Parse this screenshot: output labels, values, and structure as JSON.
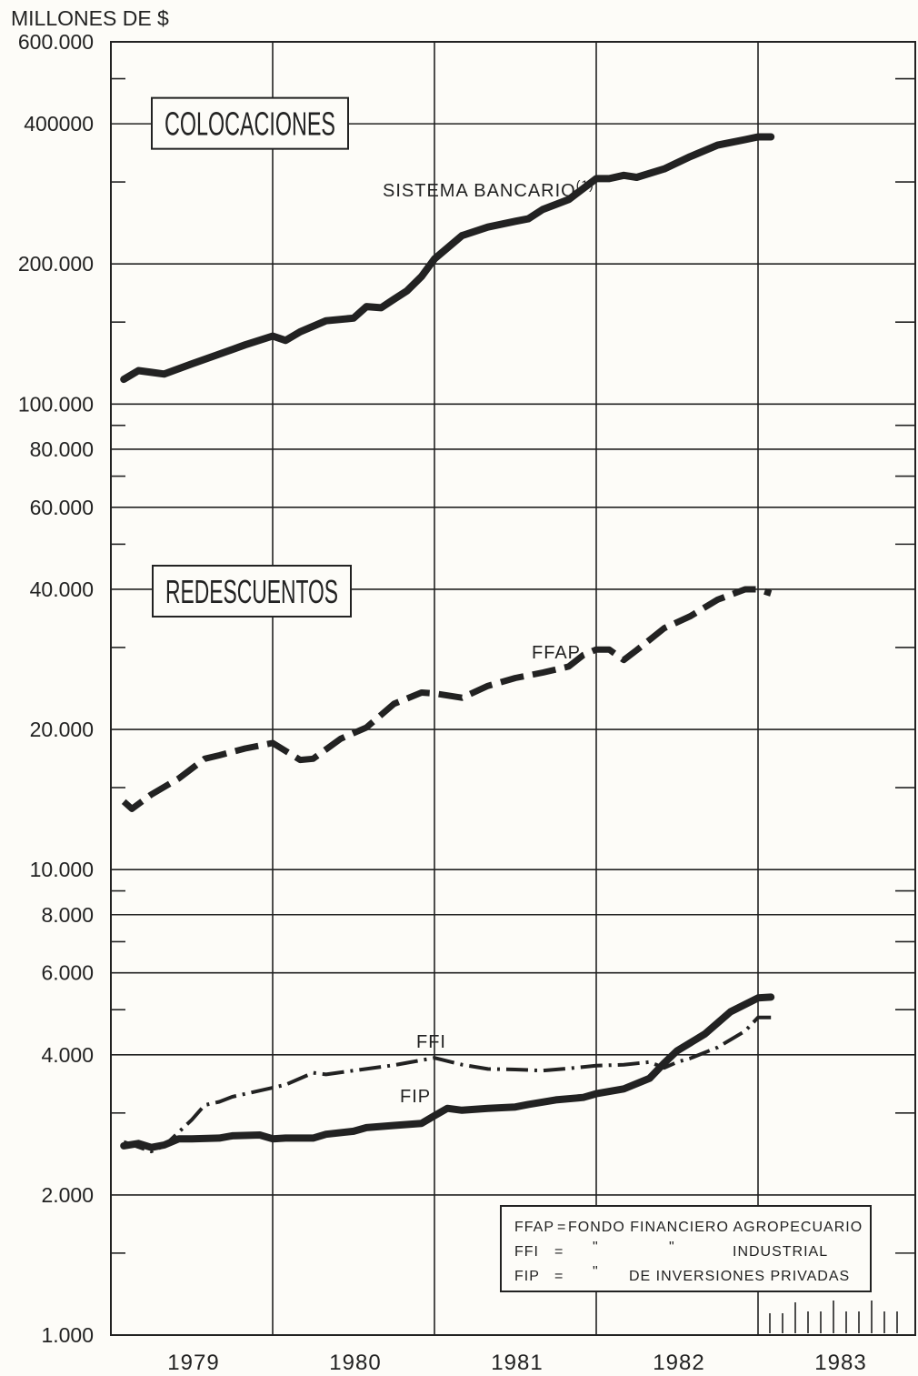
{
  "chart_data": {
    "type": "line",
    "yscale": "log",
    "ylim": [
      1000,
      600000
    ],
    "xlim": [
      1978.5,
      1983.5
    ],
    "unit_label": "MILLONES DE $",
    "y_ticks": [
      {
        "value": 1000,
        "label": "1.000"
      },
      {
        "value": 2000,
        "label": "2.000"
      },
      {
        "value": 4000,
        "label": "4.000"
      },
      {
        "value": 6000,
        "label": "6.000"
      },
      {
        "value": 8000,
        "label": "8.000"
      },
      {
        "value": 10000,
        "label": "10.000"
      },
      {
        "value": 20000,
        "label": "20.000"
      },
      {
        "value": 40000,
        "label": "40.000"
      },
      {
        "value": 60000,
        "label": "60.000"
      },
      {
        "value": 80000,
        "label": "80.000"
      },
      {
        "value": 100000,
        "label": "100.000"
      },
      {
        "value": 200000,
        "label": "200.000"
      },
      {
        "value": 400000,
        "label": "400000"
      },
      {
        "value": 600000,
        "label": "600.000"
      }
    ],
    "x_ticks": [
      {
        "value": 1979,
        "label": "1979"
      },
      {
        "value": 1980,
        "label": "1980"
      },
      {
        "value": 1981,
        "label": "1981"
      },
      {
        "value": 1982,
        "label": "1982"
      },
      {
        "value": 1983,
        "label": "1983"
      }
    ],
    "panels": [
      {
        "title": "COLOCACIONES",
        "value": 410000
      },
      {
        "title": "REDESCUENTOS",
        "value": 40000
      }
    ],
    "series": [
      {
        "name": "SISTEMA BANCARIO(1)",
        "label": "SISTEMA BANCARIO",
        "label_sup": "(1)",
        "style": "solid-heavy",
        "x": [
          1978.58,
          1978.67,
          1978.75,
          1978.83,
          1979.0,
          1979.17,
          1979.33,
          1979.5,
          1979.58,
          1979.67,
          1979.83,
          1980.0,
          1980.08,
          1980.17,
          1980.25,
          1980.33,
          1980.42,
          1980.5,
          1980.67,
          1980.83,
          1981.0,
          1981.08,
          1981.17,
          1981.33,
          1981.5,
          1981.58,
          1981.67,
          1981.75,
          1981.92,
          1982.08,
          1982.25,
          1982.42,
          1982.5,
          1982.58
        ],
        "values": [
          113000,
          118000,
          117000,
          116000,
          122000,
          128000,
          134000,
          140000,
          137000,
          143000,
          151000,
          153000,
          162000,
          161000,
          168000,
          175000,
          188000,
          205000,
          230000,
          240000,
          247000,
          250000,
          262000,
          275000,
          305000,
          305000,
          310000,
          307000,
          320000,
          340000,
          360000,
          370000,
          375000,
          375000
        ]
      },
      {
        "name": "FFAP",
        "label": "FFAP",
        "style": "dashed-heavy",
        "x": [
          1978.58,
          1978.63,
          1978.75,
          1978.92,
          1979.08,
          1979.17,
          1979.33,
          1979.5,
          1979.67,
          1979.75,
          1979.92,
          1980.08,
          1980.25,
          1980.42,
          1980.5,
          1980.67,
          1980.83,
          1981.0,
          1981.17,
          1981.33,
          1981.42,
          1981.5,
          1981.58,
          1981.67,
          1981.75,
          1981.92,
          1982.08,
          1982.25,
          1982.42,
          1982.5,
          1982.58
        ],
        "values": [
          14000,
          13500,
          14500,
          15700,
          17300,
          17600,
          18200,
          18700,
          17200,
          17300,
          19100,
          20200,
          22700,
          24000,
          23900,
          23400,
          24800,
          25800,
          26500,
          27300,
          28900,
          29700,
          29700,
          28200,
          29600,
          33000,
          35000,
          38000,
          40000,
          40000,
          39200
        ]
      },
      {
        "name": "FFI",
        "label": "FFI",
        "style": "dashdot",
        "x": [
          1978.58,
          1978.75,
          1978.83,
          1979.0,
          1979.08,
          1979.17,
          1979.25,
          1979.5,
          1979.58,
          1979.75,
          1979.83,
          1980.0,
          1980.25,
          1980.5,
          1980.67,
          1980.83,
          1981.0,
          1981.17,
          1981.33,
          1981.5,
          1981.67,
          1981.83,
          1981.92,
          1982.0,
          1982.08,
          1982.25,
          1982.42,
          1982.5,
          1982.58
        ],
        "values": [
          2600,
          2480,
          2550,
          2900,
          3120,
          3170,
          3250,
          3400,
          3450,
          3660,
          3630,
          3700,
          3800,
          3940,
          3810,
          3730,
          3720,
          3700,
          3740,
          3790,
          3810,
          3860,
          3750,
          3860,
          3930,
          4150,
          4500,
          4810,
          4810
        ]
      },
      {
        "name": "FIP",
        "label": "FIP",
        "style": "solid-heavy",
        "x": [
          1978.58,
          1978.67,
          1978.75,
          1978.83,
          1978.92,
          1979.0,
          1979.17,
          1979.25,
          1979.42,
          1979.5,
          1979.58,
          1979.75,
          1979.83,
          1980.0,
          1980.08,
          1980.25,
          1980.42,
          1980.5,
          1980.58,
          1980.67,
          1980.83,
          1981.0,
          1981.08,
          1981.25,
          1981.42,
          1981.5,
          1981.67,
          1981.83,
          1981.92,
          1982.0,
          1982.17,
          1982.33,
          1982.5,
          1982.58
        ],
        "values": [
          2550,
          2580,
          2530,
          2560,
          2640,
          2640,
          2650,
          2680,
          2690,
          2640,
          2650,
          2650,
          2700,
          2740,
          2790,
          2820,
          2850,
          2960,
          3070,
          3040,
          3070,
          3090,
          3130,
          3200,
          3240,
          3300,
          3380,
          3560,
          3840,
          4080,
          4430,
          4950,
          5300,
          5320
        ]
      }
    ],
    "legend": [
      {
        "abbr": "FFAP",
        "eq": "=",
        "text": "FONDO FINANCIERO AGROPECUARIO"
      },
      {
        "abbr": "FFI",
        "eq": "=",
        "text": "INDUSTRIAL",
        "ditto": [
          "\"",
          "\""
        ]
      },
      {
        "abbr": "FIP",
        "eq": "=",
        "text": "DE INVERSIONES PRIVADAS",
        "ditto": [
          "\""
        ]
      }
    ]
  }
}
